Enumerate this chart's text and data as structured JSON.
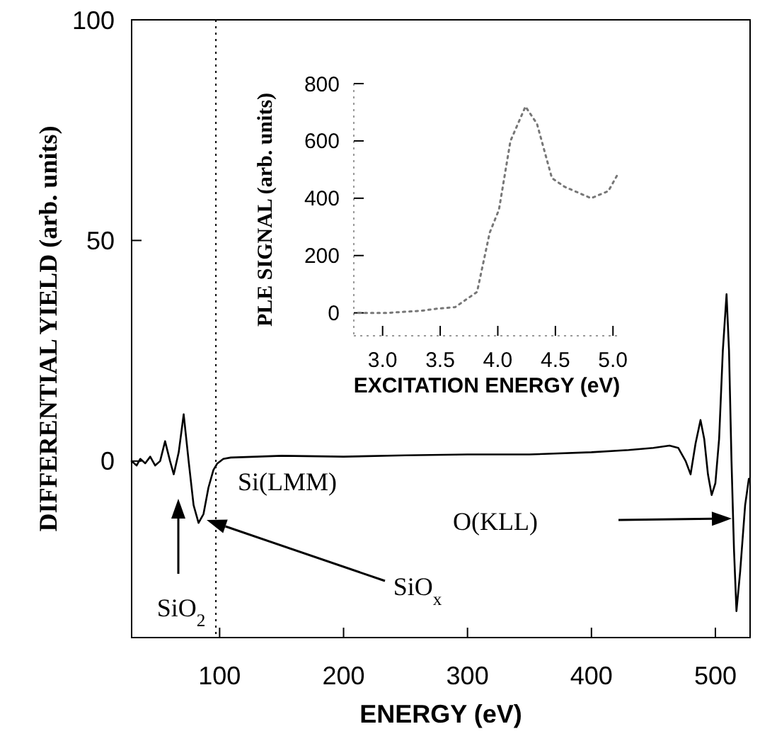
{
  "chart_data": [
    {
      "type": "line",
      "xlabel": "ENERGY (eV)",
      "ylabel": "DIFFERENTIAL YIELD (arb. units)",
      "color": "#000000",
      "line_style": "solid",
      "xlim": [
        29,
        528
      ],
      "ylim": [
        -40,
        100
      ],
      "xticks": [
        100,
        200,
        300,
        400,
        500
      ],
      "yticks": [
        0,
        50,
        100
      ],
      "x": [
        29,
        33,
        36,
        40,
        44,
        48,
        52,
        56,
        60,
        63,
        67,
        71,
        75,
        79,
        83,
        87,
        91,
        95,
        98,
        103,
        109,
        130,
        150,
        200,
        250,
        300,
        350,
        400,
        430,
        450,
        463,
        470,
        476,
        480,
        484,
        488,
        491,
        494,
        497,
        500,
        503,
        506,
        509,
        511,
        513,
        515,
        517,
        520,
        524,
        527
      ],
      "values": [
        0,
        -1,
        0.5,
        -0.5,
        1,
        -1,
        0,
        4.5,
        0,
        -3,
        2,
        10.6,
        0,
        -10,
        -14,
        -12,
        -6,
        -2,
        -0.6,
        0.5,
        0.8,
        1,
        1.2,
        1,
        1.3,
        1.5,
        1.5,
        2,
        2.5,
        3,
        3.5,
        3,
        0,
        -3,
        4,
        9.3,
        5,
        -3,
        -7.7,
        -5,
        5,
        25,
        37.8,
        25,
        0,
        -20,
        -34,
        -25,
        -10,
        -4
      ],
      "ref_lines": [
        {
          "axis": "x",
          "value": 97,
          "color": "#000000",
          "line_style": "dotted"
        }
      ],
      "annotations": [
        "Si(LMM)",
        "SiO$_{2}$",
        "SiO$_{x}$",
        "O(KLL)"
      ]
    },
    {
      "type": "line",
      "xlabel": "EXCITATION ENERGY (eV)",
      "ylabel": "PLE SIGNAL (arb. units)",
      "color": "#777777",
      "line_style": "dotted",
      "xlim": [
        2.75,
        5.06
      ],
      "ylim": [
        -80,
        800
      ],
      "xticks": [
        {
          "value": 3,
          "label": "3.0"
        },
        3.5,
        {
          "value": 4,
          "label": "4.0"
        },
        4.5,
        {
          "value": 5,
          "label": "5.0"
        }
      ],
      "yticks": [
        0,
        200,
        400,
        600,
        800
      ],
      "x": [
        2.79,
        3.04,
        3.33,
        3.46,
        3.63,
        3.82,
        3.93,
        4.01,
        4.11,
        4.24,
        4.34,
        4.47,
        4.58,
        4.81,
        4.96,
        5.05
      ],
      "values": [
        0,
        0,
        7,
        14,
        20,
        73,
        280,
        360,
        600,
        720,
        660,
        470,
        440,
        400,
        425,
        490
      ]
    }
  ]
}
